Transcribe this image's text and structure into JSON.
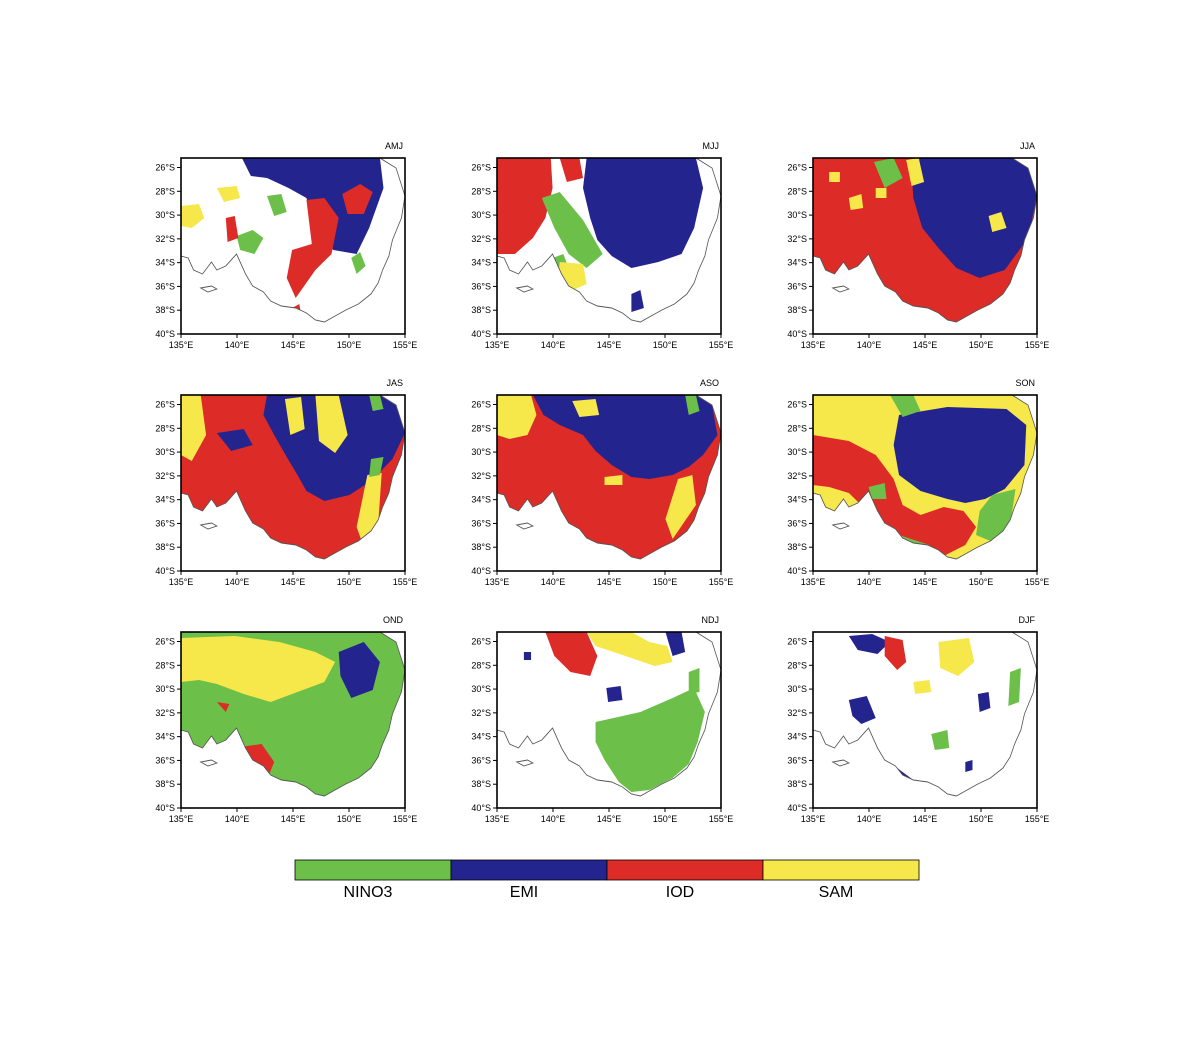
{
  "legend": {
    "entries": [
      {
        "label": "NINO3",
        "color": "#6cc04a"
      },
      {
        "label": "EMI",
        "color": "#24248f"
      },
      {
        "label": "IOD",
        "color": "#dd2b27"
      },
      {
        "label": "SAM",
        "color": "#f6e74a"
      }
    ]
  },
  "axes": {
    "lon_ticks": [
      "135°E",
      "140°E",
      "145°E",
      "150°E",
      "155°E"
    ],
    "lat_ticks": [
      "26°S",
      "28°S",
      "30°S",
      "32°S",
      "34°S",
      "36°S",
      "38°S",
      "40°S"
    ],
    "lon_range": [
      135,
      155
    ],
    "lat_range": [
      -40,
      -25.2
    ]
  },
  "panels": [
    {
      "title": "AMJ"
    },
    {
      "title": "MJJ"
    },
    {
      "title": "JJA"
    },
    {
      "title": "JAS"
    },
    {
      "title": "ASO"
    },
    {
      "title": "SON"
    },
    {
      "title": "OND"
    },
    {
      "title": "NDJ"
    },
    {
      "title": "DJF"
    }
  ]
}
